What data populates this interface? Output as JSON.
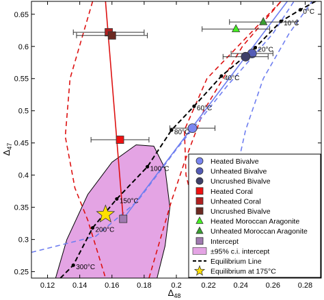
{
  "chart_data": {
    "type": "scatter",
    "xlabel": "Δ",
    "xlabel_sub": "48",
    "ylabel": "Δ",
    "ylabel_sub": "47",
    "xlim": [
      0.11,
      0.29
    ],
    "ylim": [
      0.24,
      0.67
    ],
    "xticks": [
      0.12,
      0.14,
      0.16,
      0.18,
      0.2,
      0.22,
      0.24,
      0.26,
      0.28
    ],
    "xtick_labels": [
      "0.12",
      "0.14",
      "0.16",
      "0.18",
      "0.2",
      "0.22",
      "0.24",
      "0.26",
      "0.28"
    ],
    "yticks": [
      0.25,
      0.3,
      0.35,
      0.4,
      0.45,
      0.5,
      0.55,
      0.6,
      0.65
    ],
    "ytick_labels": [
      "0.25",
      "0.3",
      "0.35",
      "0.4",
      "0.45",
      "0.5",
      "0.55",
      "0.6",
      "0.65"
    ],
    "grid": false,
    "legend_position": "lower-right",
    "equilibrium_line": {
      "points": [
        {
          "x": 0.128,
          "y": 0.24
        },
        {
          "x": 0.136,
          "y": 0.26,
          "label": "300°C"
        },
        {
          "x": 0.148,
          "y": 0.318,
          "label": "200°C"
        },
        {
          "x": 0.163,
          "y": 0.363,
          "label": "150°C"
        },
        {
          "x": 0.182,
          "y": 0.413,
          "label": "100°C"
        },
        {
          "x": 0.197,
          "y": 0.47,
          "label": "80°C"
        },
        {
          "x": 0.211,
          "y": 0.507,
          "label": "60°C"
        },
        {
          "x": 0.228,
          "y": 0.554,
          "label": "40°C"
        },
        {
          "x": 0.249,
          "y": 0.598,
          "label": "20°C"
        },
        {
          "x": 0.265,
          "y": 0.639,
          "label": "10°C"
        },
        {
          "x": 0.277,
          "y": 0.657,
          "label": "0°C"
        },
        {
          "x": 0.29,
          "y": 0.675
        }
      ]
    },
    "points": [
      {
        "series": "Heated Bivalve",
        "x": 0.21,
        "y": 0.473,
        "xerr": 0.014
      },
      {
        "series": "Unheated Bivalve",
        "x": 0.247,
        "y": 0.589,
        "xerr": 0.013
      },
      {
        "series": "Uncrushed Bivalve",
        "x": 0.243,
        "y": 0.584,
        "xerr": 0.014
      },
      {
        "series": "Heated Coral",
        "x": 0.165,
        "y": 0.455,
        "xerr": 0.018
      },
      {
        "series": "Unheated Coral",
        "x": 0.158,
        "y": 0.622,
        "xerr": 0.022
      },
      {
        "series": "Uncrushed Bivalve",
        "x": 0.16,
        "y": 0.617,
        "xerr": 0.022
      },
      {
        "series": "Heated Moroccan Aragonite",
        "x": 0.237,
        "y": 0.627,
        "xerr": 0.021
      },
      {
        "series": "Unheated Moroccan Aragonite",
        "x": 0.254,
        "y": 0.638,
        "xerr": 0.021
      },
      {
        "series": "Intercept",
        "x": 0.167,
        "y": 0.332
      },
      {
        "series": "Equilibrium at 175°C",
        "x": 0.156,
        "y": 0.339
      }
    ],
    "lines": [
      {
        "color": "#dd1111",
        "from": {
          "x": 0.156,
          "y": 0.67
        },
        "to": {
          "x": 0.167,
          "y": 0.332
        }
      },
      {
        "color": "#6e7ef0",
        "from": {
          "x": 0.167,
          "y": 0.332
        },
        "to": {
          "x": 0.29,
          "y": 0.74
        }
      }
    ],
    "confidence_band_red": {
      "color": "#dd1111",
      "upper": [
        [
          0.265,
          0.67
        ],
        [
          0.219,
          0.55
        ],
        [
          0.205,
          0.47
        ],
        [
          0.206,
          0.4
        ],
        [
          0.212,
          0.34
        ],
        [
          0.228,
          0.24
        ]
      ],
      "lower": [
        [
          0.183,
          0.24
        ],
        [
          0.19,
          0.3
        ],
        [
          0.197,
          0.36
        ],
        [
          0.205,
          0.42
        ],
        [
          0.217,
          0.5
        ],
        [
          0.241,
          0.6
        ],
        [
          0.265,
          0.67
        ]
      ]
    },
    "confidence_band_red_left": [
      [
        0.148,
        0.67
      ],
      [
        0.134,
        0.55
      ],
      [
        0.131,
        0.46
      ],
      [
        0.137,
        0.38
      ],
      [
        0.145,
        0.33
      ],
      [
        0.156,
        0.24
      ]
    ],
    "confidence_band_blue": {
      "color": "#6e7ef0",
      "upper": [
        [
          0.11,
          0.28
        ],
        [
          0.15,
          0.305
        ],
        [
          0.176,
          0.36
        ],
        [
          0.2,
          0.44
        ],
        [
          0.232,
          0.54
        ],
        [
          0.26,
          0.62
        ],
        [
          0.273,
          0.67
        ]
      ],
      "lower": [
        [
          0.219,
          0.24
        ],
        [
          0.227,
          0.3
        ],
        [
          0.235,
          0.38
        ],
        [
          0.243,
          0.47
        ],
        [
          0.254,
          0.55
        ],
        [
          0.27,
          0.62
        ],
        [
          0.29,
          0.69
        ]
      ],
      "left_start": [
        [
          0.11,
          0.323
        ],
        [
          0.145,
          0.355
        ],
        [
          0.17,
          0.39
        ],
        [
          0.19,
          0.44
        ],
        [
          0.22,
          0.52
        ],
        [
          0.245,
          0.58
        ],
        [
          0.266,
          0.67
        ]
      ]
    },
    "ellipse_region": {
      "label": "±95% c.i. intercept",
      "color": "#e4a4e4",
      "outline": [
        [
          0.125,
          0.24
        ],
        [
          0.132,
          0.3
        ],
        [
          0.145,
          0.37
        ],
        [
          0.16,
          0.42
        ],
        [
          0.175,
          0.447
        ],
        [
          0.186,
          0.445
        ],
        [
          0.193,
          0.41
        ],
        [
          0.196,
          0.35
        ],
        [
          0.193,
          0.29
        ],
        [
          0.188,
          0.24
        ]
      ]
    },
    "legend": [
      {
        "label": "Heated Bivalve",
        "marker": "circle",
        "color": "#7a86f0"
      },
      {
        "label": "Unheated Bivalve",
        "marker": "circle",
        "color": "#545cb6"
      },
      {
        "label": "Uncrushed Bivalve",
        "marker": "circle",
        "color": "#3e4068"
      },
      {
        "label": "Heated Coral",
        "marker": "square",
        "color": "#ee1111"
      },
      {
        "label": "Unheated Coral",
        "marker": "square",
        "color": "#b02020"
      },
      {
        "label": "Uncrushed Bivalve",
        "marker": "square",
        "color": "#6b2a22"
      },
      {
        "label": "Heated Moroccan Aragonite",
        "marker": "triangle",
        "color": "#44ee22"
      },
      {
        "label": "Unheated Moroccan Aragonite",
        "marker": "triangle",
        "color": "#39a030"
      },
      {
        "label": "Intercept",
        "marker": "square",
        "color": "#a07ab0"
      },
      {
        "label": "±95% c.i. intercept",
        "marker": "patch",
        "color": "#e4a4e4"
      },
      {
        "label": "Equilibrium Line",
        "marker": "dash",
        "color": "#000000"
      },
      {
        "label": "Equilibrium at 175°C",
        "marker": "star",
        "color": "#ffe000"
      }
    ],
    "colors": {
      "Heated Bivalve": "#7a86f0",
      "Unheated Bivalve": "#545cb6",
      "Uncrushed Bivalve": "#3e4068",
      "Heated Coral": "#ee1111",
      "Unheated Coral": "#b02020",
      "Heated Moroccan Aragonite": "#44ee22",
      "Unheated Moroccan Aragonite": "#39a030",
      "Intercept": "#a07ab0",
      "Equilibrium at 175°C": "#ffe000"
    }
  }
}
